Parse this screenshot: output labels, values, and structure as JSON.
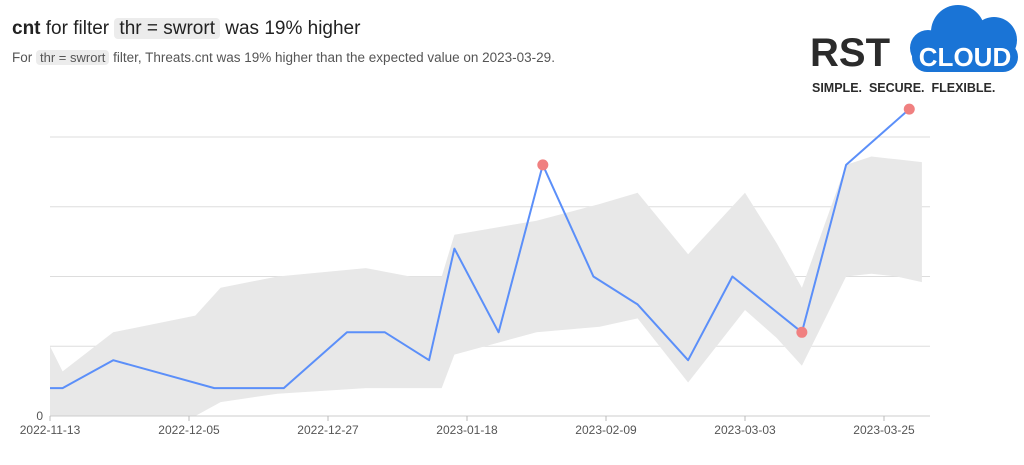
{
  "header": {
    "title_metric": "cnt",
    "title_pre": "for filter",
    "title_filter": "thr = swrort",
    "title_post": "was 19% higher",
    "subtitle_pre": "For",
    "subtitle_filter": "thr = swrort",
    "subtitle_post": "filter, Threats.cnt was 19% higher than the expected value on 2023-03-29."
  },
  "logo": {
    "word": "RST",
    "cloud_word": "CLOUD",
    "tagline": "SIMPLE.  SECURE.  FLEXIBLE.",
    "cloud_color": "#1a74d6",
    "text_color": "#2b2b2b"
  },
  "colors": {
    "line": "#5b8ff9",
    "band": "#e8e8e8",
    "anomaly": "#f08080",
    "grid": "#dddddd"
  },
  "chart_data": {
    "type": "line",
    "title": "",
    "xlabel": "",
    "ylabel": "",
    "ylim": [
      0,
      10
    ],
    "y_ticks": [
      0
    ],
    "gridlines": [
      2.5,
      5,
      7.5,
      10
    ],
    "x_ticks": [
      "2022-11-13",
      "2022-12-05",
      "2022-12-27",
      "2023-01-18",
      "2023-02-09",
      "2023-03-03",
      "2023-03-25"
    ],
    "series": [
      {
        "values": [
          {
            "x": "2022-11-13",
            "y": 1.0
          },
          {
            "x": "2022-11-15",
            "y": 1.0
          },
          {
            "x": "2022-11-23",
            "y": 2.0
          },
          {
            "x": "2022-12-09",
            "y": 1.0
          },
          {
            "x": "2022-12-20",
            "y": 1.0
          },
          {
            "x": "2022-12-30",
            "y": 3.0
          },
          {
            "x": "2023-01-05",
            "y": 3.0
          },
          {
            "x": "2023-01-12",
            "y": 2.0
          },
          {
            "x": "2023-01-16",
            "y": 6.0
          },
          {
            "x": "2023-01-23",
            "y": 3.0
          },
          {
            "x": "2023-01-30",
            "y": 9.0
          },
          {
            "x": "2023-02-07",
            "y": 5.0
          },
          {
            "x": "2023-02-14",
            "y": 4.0
          },
          {
            "x": "2023-02-22",
            "y": 2.0
          },
          {
            "x": "2023-03-01",
            "y": 5.0
          },
          {
            "x": "2023-03-12",
            "y": 3.0
          },
          {
            "x": "2023-03-19",
            "y": 9.0
          },
          {
            "x": "2023-03-29",
            "y": 11.0
          }
        ]
      }
    ],
    "expected_band": [
      {
        "x": "2022-11-13",
        "lower": 0.0,
        "upper": 2.5
      },
      {
        "x": "2022-11-15",
        "lower": 0.0,
        "upper": 1.6
      },
      {
        "x": "2022-11-23",
        "lower": 0.0,
        "upper": 3.0
      },
      {
        "x": "2022-12-06",
        "lower": 0.0,
        "upper": 3.6
      },
      {
        "x": "2022-12-10",
        "lower": 0.5,
        "upper": 4.6
      },
      {
        "x": "2022-12-19",
        "lower": 0.8,
        "upper": 5.0
      },
      {
        "x": "2023-01-02",
        "lower": 1.0,
        "upper": 5.3
      },
      {
        "x": "2023-01-09",
        "lower": 1.0,
        "upper": 5.0
      },
      {
        "x": "2023-01-14",
        "lower": 1.0,
        "upper": 5.0
      },
      {
        "x": "2023-01-16",
        "lower": 2.2,
        "upper": 6.5
      },
      {
        "x": "2023-01-29",
        "lower": 3.0,
        "upper": 7.0
      },
      {
        "x": "2023-02-08",
        "lower": 3.2,
        "upper": 7.6
      },
      {
        "x": "2023-02-14",
        "lower": 3.5,
        "upper": 8.0
      },
      {
        "x": "2023-02-22",
        "lower": 1.2,
        "upper": 5.8
      },
      {
        "x": "2023-03-03",
        "lower": 3.8,
        "upper": 8.0
      },
      {
        "x": "2023-03-08",
        "lower": 2.8,
        "upper": 6.2
      },
      {
        "x": "2023-03-12",
        "lower": 1.8,
        "upper": 4.6
      },
      {
        "x": "2023-03-19",
        "lower": 5.0,
        "upper": 9.0
      },
      {
        "x": "2023-03-23",
        "lower": 5.1,
        "upper": 9.3
      },
      {
        "x": "2023-03-27",
        "lower": 5.0,
        "upper": 9.2
      },
      {
        "x": "2023-03-31",
        "lower": 4.8,
        "upper": 9.1
      }
    ],
    "anomalies": [
      {
        "x": "2023-01-30",
        "y": 9.0
      },
      {
        "x": "2023-03-12",
        "y": 3.0
      },
      {
        "x": "2023-03-29",
        "y": 11.0
      }
    ]
  }
}
